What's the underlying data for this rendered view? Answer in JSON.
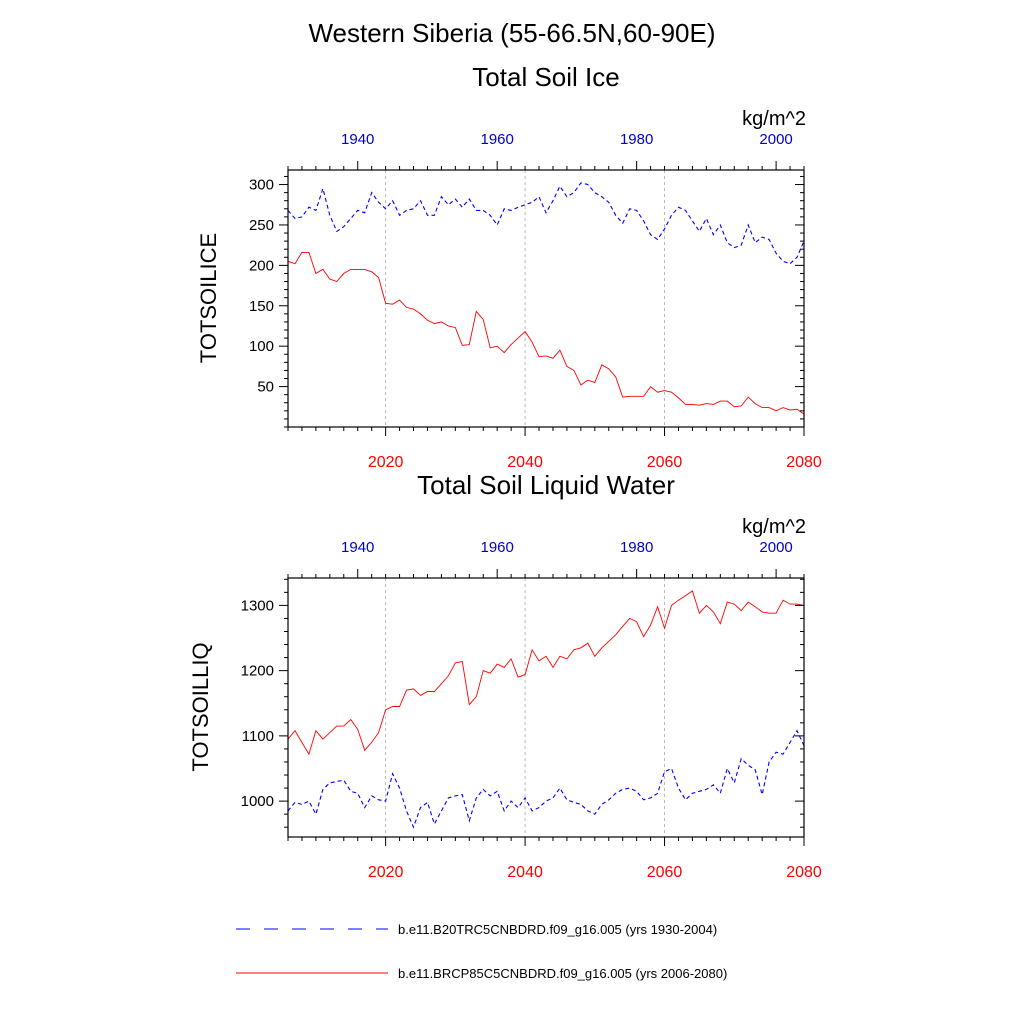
{
  "figure": {
    "title": "Western Siberia (55-66.5N,60-90E)"
  },
  "colors": {
    "historical": "#0000ff",
    "future": "#ff0000",
    "future_axis": "#ff0000",
    "historical_axis": "#0000cc",
    "frame": "#000000",
    "grid": "#aaaaaa"
  },
  "legend": [
    {
      "label": "b.e11.B20TRC5CNBDRD.f09_g16.005 (yrs 1930-2004)",
      "style": "dashed",
      "color": "#0000ff"
    },
    {
      "label": "b.e11.BRCP85C5CNBDRD.f09_g16.005 (yrs 2006-2080)",
      "style": "solid",
      "color": "#ff0000"
    }
  ],
  "chart_data": [
    {
      "type": "line",
      "title": "Total Soil Ice",
      "units": "kg/m^2",
      "ylabel": "TOTSOILICE",
      "ylim": [
        0,
        318
      ],
      "yticks": [
        50,
        100,
        150,
        200,
        250,
        300
      ],
      "x_bottom_range": [
        2006,
        2080
      ],
      "x_bottom_ticks": [
        "2020",
        "2040",
        "2060",
        "2080"
      ],
      "x_top_range": [
        1930,
        2004
      ],
      "x_top_ticks": [
        "1940",
        "1960",
        "1980",
        "2000"
      ],
      "grid_vertical": [
        2020,
        2040,
        2060
      ],
      "series": [
        {
          "axis": "top",
          "style": "dashed",
          "color": "#0000ff",
          "x_start": 1930,
          "values": [
            268,
            258,
            260,
            272,
            268,
            295,
            262,
            242,
            248,
            258,
            268,
            265,
            290,
            278,
            270,
            280,
            262,
            268,
            270,
            280,
            262,
            262,
            285,
            275,
            282,
            272,
            282,
            268,
            268,
            262,
            250,
            270,
            268,
            272,
            275,
            278,
            285,
            265,
            280,
            298,
            285,
            290,
            302,
            300,
            290,
            285,
            278,
            262,
            252,
            270,
            268,
            255,
            238,
            232,
            245,
            262,
            272,
            268,
            255,
            242,
            258,
            238,
            250,
            228,
            222,
            225,
            250,
            228,
            235,
            232,
            215,
            205,
            202,
            210,
            230
          ]
        },
        {
          "axis": "bottom",
          "style": "solid",
          "color": "#ff0000",
          "x_start": 2006,
          "values": [
            205,
            202,
            216,
            216,
            190,
            195,
            183,
            180,
            190,
            195,
            195,
            195,
            192,
            185,
            153,
            152,
            157,
            148,
            146,
            140,
            132,
            128,
            130,
            125,
            123,
            101,
            102,
            143,
            133,
            98,
            100,
            92,
            102,
            110,
            118,
            105,
            87,
            88,
            85,
            95,
            75,
            70,
            52,
            58,
            55,
            77,
            72,
            62,
            37,
            38,
            38,
            38,
            50,
            43,
            45,
            43,
            36,
            28,
            28,
            27,
            29,
            28,
            32,
            32,
            25,
            26,
            37,
            29,
            24,
            24,
            20,
            24,
            21,
            22,
            16
          ]
        }
      ]
    },
    {
      "type": "line",
      "title": "Total Soil Liquid Water",
      "units": "kg/m^2",
      "ylabel": "TOTSOILLIQ",
      "ylim": [
        945,
        1342
      ],
      "yticks": [
        1000,
        1100,
        1200,
        1300
      ],
      "x_bottom_range": [
        2006,
        2080
      ],
      "x_bottom_ticks": [
        "2020",
        "2040",
        "2060",
        "2080"
      ],
      "x_top_range": [
        1930,
        2004
      ],
      "x_top_ticks": [
        "1940",
        "1960",
        "1980",
        "2000"
      ],
      "grid_vertical": [
        2020,
        2040,
        2060
      ],
      "series": [
        {
          "axis": "top",
          "style": "dashed",
          "color": "#0000ff",
          "x_start": 1930,
          "values": [
            985,
            998,
            995,
            1000,
            980,
            1018,
            1028,
            1030,
            1032,
            1015,
            1012,
            990,
            1008,
            1002,
            1000,
            1042,
            1020,
            985,
            960,
            990,
            998,
            965,
            985,
            1005,
            1008,
            1010,
            970,
            1005,
            1018,
            1008,
            1015,
            985,
            1000,
            990,
            1005,
            985,
            990,
            1000,
            1005,
            1020,
            1002,
            998,
            995,
            985,
            980,
            995,
            1002,
            1012,
            1018,
            1020,
            1015,
            1002,
            1005,
            1012,
            1045,
            1050,
            1020,
            1002,
            1012,
            1015,
            1018,
            1025,
            1012,
            1050,
            1028,
            1065,
            1055,
            1048,
            1010,
            1060,
            1075,
            1072,
            1090,
            1108,
            1085
          ]
        },
        {
          "axis": "bottom",
          "style": "solid",
          "color": "#ff0000",
          "x_start": 2006,
          "values": [
            1095,
            1108,
            1090,
            1072,
            1108,
            1095,
            1105,
            1115,
            1115,
            1125,
            1110,
            1078,
            1090,
            1105,
            1140,
            1145,
            1145,
            1170,
            1172,
            1162,
            1168,
            1168,
            1180,
            1192,
            1212,
            1214,
            1148,
            1160,
            1200,
            1196,
            1210,
            1205,
            1218,
            1190,
            1194,
            1232,
            1215,
            1222,
            1205,
            1222,
            1218,
            1232,
            1235,
            1242,
            1222,
            1235,
            1245,
            1255,
            1268,
            1280,
            1275,
            1252,
            1270,
            1298,
            1265,
            1300,
            1308,
            1315,
            1322,
            1288,
            1300,
            1290,
            1272,
            1305,
            1302,
            1292,
            1305,
            1298,
            1290,
            1288,
            1288,
            1308,
            1302,
            1302,
            1300
          ]
        }
      ]
    }
  ]
}
